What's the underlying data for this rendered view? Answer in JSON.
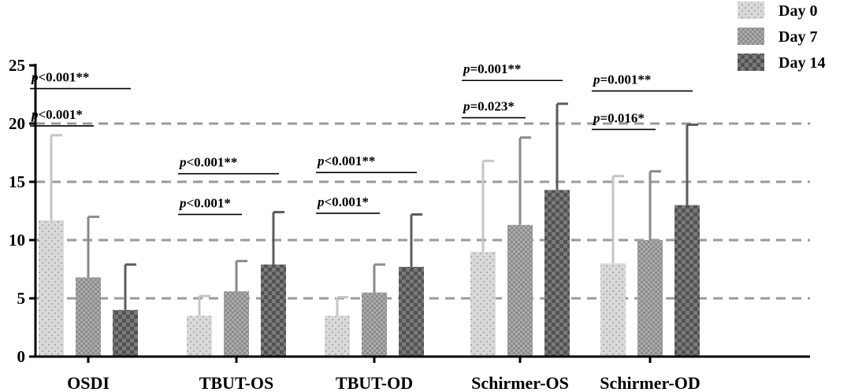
{
  "chart_data": {
    "type": "bar",
    "title": "",
    "xlabel": "",
    "ylabel": "",
    "ylim": [
      0,
      25
    ],
    "yticks": [
      0,
      5,
      10,
      15,
      20,
      25
    ],
    "reference_lines": [
      5,
      10,
      15,
      20
    ],
    "categories": [
      "OSDI",
      "TBUT-OS",
      "TBUT-OD",
      "Schirmer-OS",
      "Schirmer-OD"
    ],
    "series": [
      {
        "name": "Day 0",
        "color": "#d6d6d6",
        "values": [
          11.7,
          3.5,
          3.5,
          9.0,
          8.0
        ],
        "error_upper": [
          19.0,
          5.2,
          5.1,
          16.8,
          15.5
        ]
      },
      {
        "name": "Day 7",
        "color": "#a3a3a3",
        "values": [
          6.8,
          5.6,
          5.5,
          11.3,
          10.0
        ],
        "error_upper": [
          12.0,
          8.2,
          7.9,
          18.8,
          15.9
        ]
      },
      {
        "name": "Day 14",
        "color": "#6e6e6e",
        "values": [
          4.0,
          7.9,
          7.7,
          14.3,
          13.0
        ],
        "error_upper": [
          7.9,
          12.4,
          12.2,
          21.7,
          19.9
        ]
      }
    ],
    "legend_position": "top-right",
    "annotations": [
      {
        "category": "OSDI",
        "label": "<0.001**",
        "span": [
          0,
          2
        ],
        "level": 23.0
      },
      {
        "category": "OSDI",
        "label": "<0.001*",
        "span": [
          0,
          1
        ],
        "level": 19.8
      },
      {
        "category": "TBUT-OS",
        "label": "<0.001**",
        "span": [
          0,
          2
        ],
        "level": 15.7
      },
      {
        "category": "TBUT-OS",
        "label": "<0.001*",
        "span": [
          0,
          1
        ],
        "level": 12.2
      },
      {
        "category": "TBUT-OD",
        "label": "<0.001**",
        "span": [
          0,
          2
        ],
        "level": 15.8
      },
      {
        "category": "TBUT-OD",
        "label": "<0.001*",
        "span": [
          0,
          1
        ],
        "level": 12.3
      },
      {
        "category": "Schirmer-OS",
        "label": "=0.001**",
        "span": [
          0,
          2
        ],
        "level": 23.7
      },
      {
        "category": "Schirmer-OS",
        "label": "=0.023*",
        "span": [
          0,
          1
        ],
        "level": 20.5
      },
      {
        "category": "Schirmer-OD",
        "label": "=0.001**",
        "span": [
          0,
          2
        ],
        "level": 22.8
      },
      {
        "category": "Schirmer-OD",
        "label": "=0.016*",
        "span": [
          0,
          1
        ],
        "level": 19.5
      }
    ],
    "annotation_prefix": "p"
  }
}
